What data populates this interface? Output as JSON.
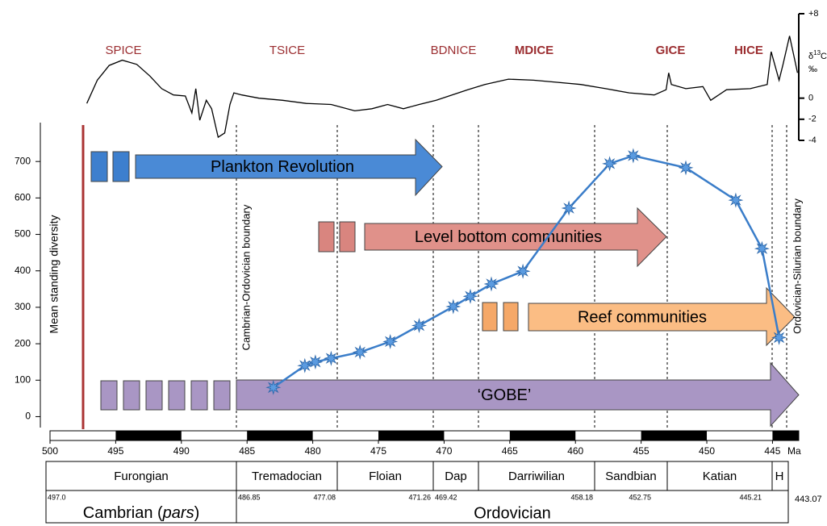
{
  "chart_data": [
    {
      "type": "line",
      "ylabel": "Mean standing diversity",
      "x_unit": "Ma",
      "x": [
        483.0,
        480.6,
        479.8,
        478.6,
        476.4,
        474.1,
        471.9,
        469.3,
        468.0,
        466.4,
        464.0,
        460.5,
        457.4,
        455.6,
        451.6,
        447.8,
        445.8,
        444.5
      ],
      "values": [
        80,
        140,
        150,
        160,
        177,
        206,
        250,
        302,
        330,
        364,
        399,
        572,
        694,
        716,
        683,
        594,
        461,
        217
      ],
      "color": "#3a7dc9",
      "xlim": [
        500,
        443
      ],
      "xticks": [
        500,
        495,
        490,
        485,
        480,
        475,
        470,
        465,
        460,
        455,
        450,
        445
      ],
      "ylim": [
        -30,
        800
      ],
      "yticks": [
        0,
        100,
        200,
        300,
        400,
        500,
        600,
        700
      ]
    },
    {
      "type": "line",
      "ylabel_parts": [
        "δ",
        "13",
        "C",
        "‰"
      ],
      "x": [
        497.2,
        496.4,
        495.5,
        494.5,
        493.4,
        492.4,
        491.5,
        490.6,
        489.7,
        489.2,
        488.9,
        488.6,
        488.1,
        487.7,
        487.2,
        486.7,
        486.3,
        486.0,
        485.4,
        484.1,
        482.3,
        480.5,
        478.6,
        476.8,
        475.5,
        474.3,
        473.1,
        471.9,
        470.6,
        469.4,
        468.2,
        466.9,
        465.1,
        463.2,
        461.4,
        459.6,
        457.7,
        455.9,
        454.0,
        453.1,
        452.9,
        452.7,
        451.6,
        450.3,
        449.7,
        448.5,
        446.7,
        445.4,
        445.1,
        444.5,
        444.2,
        443.7,
        443.3,
        443.1
      ],
      "values": [
        -0.5,
        1.7,
        3.1,
        3.6,
        3.2,
        2.1,
        0.9,
        0.3,
        0.2,
        -1.4,
        0.9,
        -2.1,
        -0.2,
        -1.0,
        -3.7,
        -3.3,
        -0.6,
        0.5,
        0.3,
        0,
        -0.2,
        -0.5,
        -0.6,
        -1.2,
        -1.0,
        -0.6,
        -1.0,
        -0.6,
        -0.2,
        0.3,
        0.8,
        1.3,
        1.8,
        1.7,
        1.5,
        1.3,
        0.9,
        0.5,
        0.3,
        0.8,
        2.4,
        1.3,
        0.9,
        1.1,
        -0.2,
        0.8,
        0.9,
        1.3,
        4.4,
        1.7,
        3.2,
        5.9,
        3.6,
        2.4
      ],
      "color": "#000000",
      "xlim": [
        500,
        443
      ],
      "ylim": [
        -4,
        8
      ],
      "yticks": [
        {
          "value": 8,
          "label": "+8"
        },
        0,
        -2,
        -4
      ]
    }
  ],
  "events": [
    "SPICE",
    "TSICE",
    "BDNICE",
    "MDICE",
    "GICE",
    "HICE"
  ],
  "boundary_labels": [
    "Cambrian-Ordovician boundary",
    "Ordovician-Silurian boundary"
  ],
  "arrows": [
    "Plankton Revolution",
    "Level bottom communities",
    "Reef communities",
    "‘GOBE’"
  ],
  "table": {
    "epochs": [
      "Furongian",
      "Tremadocian",
      "Floian",
      "Dap",
      "Darriwilian",
      "Sandbian",
      "Katian",
      "H"
    ],
    "periods": [
      [
        "Cambrian (",
        "pars",
        ")"
      ],
      [
        "Ordovician"
      ]
    ],
    "ages": [
      "497.0",
      "486.85",
      "477.08",
      "471.26",
      "469.42",
      "458.18",
      "452.75",
      "445.21",
      "443.07"
    ]
  }
}
